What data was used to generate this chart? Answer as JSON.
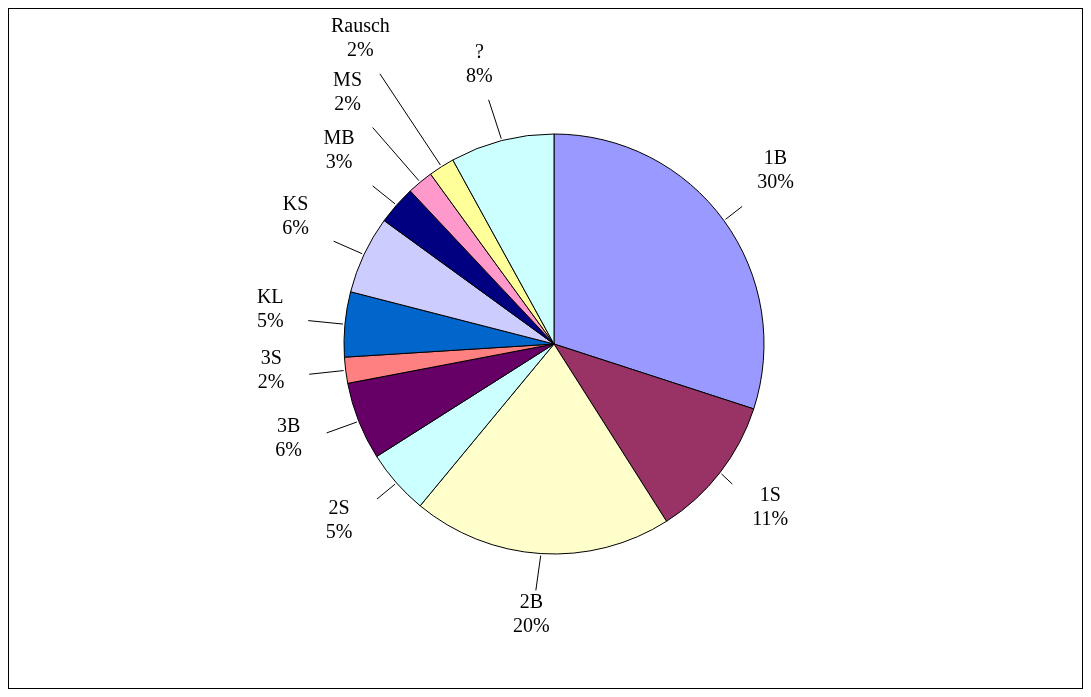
{
  "chart_data": {
    "type": "pie",
    "categories": [
      "1B",
      "1S",
      "2B",
      "2S",
      "3B",
      "3S",
      "KL",
      "KS",
      "MB",
      "MS",
      "Rausch",
      "?"
    ],
    "values": [
      30,
      11,
      20,
      5,
      6,
      2,
      5,
      6,
      3,
      2,
      2,
      8
    ],
    "value_labels": [
      "30%",
      "11%",
      "20%",
      "5%",
      "6%",
      "2%",
      "5%",
      "6%",
      "3%",
      "2%",
      "2%",
      "8%"
    ],
    "colors": [
      "#9999ff",
      "#993366",
      "#ffffcc",
      "#ccffff",
      "#660066",
      "#ff8080",
      "#0066cc",
      "#ccccff",
      "#000080",
      "#ff99cc",
      "#ffff99",
      "#ccffff"
    ]
  }
}
